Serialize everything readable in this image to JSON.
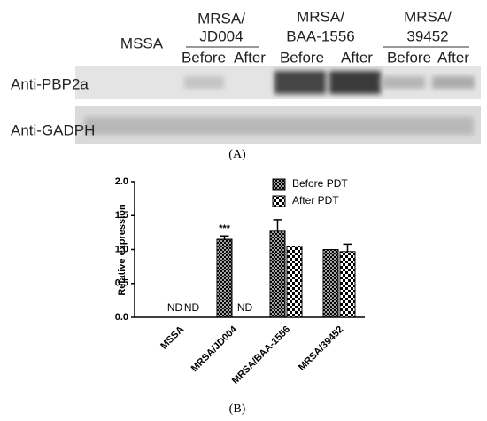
{
  "blot": {
    "groups": [
      {
        "label": "MSSA"
      },
      {
        "label": "MRSA/",
        "sublabel": "JD004",
        "lanes": [
          "Before",
          "After"
        ]
      },
      {
        "label": "MRSA/",
        "sublabel": "BAA-1556",
        "lanes": [
          "Before",
          "After"
        ]
      },
      {
        "label": "MRSA/",
        "sublabel": "39452",
        "lanes": [
          "Before",
          "After"
        ]
      }
    ],
    "rows": [
      "Anti-PBP2a",
      "Anti-GADPH"
    ],
    "panel_label": "(A)"
  },
  "chart_data": {
    "type": "bar",
    "panel_label": "(B)",
    "y_label": "Relative expression",
    "categories": [
      "MSSA",
      "MRSA/JD004",
      "MRSA/BAA-1556",
      "MRSA/39452"
    ],
    "series": [
      {
        "name": "Before PDT",
        "color": "#000000",
        "values": [
          null,
          1.15,
          1.27,
          1.0
        ],
        "errors": [
          null,
          0.05,
          0.17,
          null
        ],
        "value_labels": [
          "ND",
          null,
          null,
          null
        ],
        "annotations": [
          null,
          "***",
          null,
          null
        ]
      },
      {
        "name": "After PDT",
        "color": "#000000",
        "values": [
          null,
          null,
          1.05,
          0.97
        ],
        "errors": [
          null,
          null,
          null,
          0.11
        ],
        "value_labels": [
          "ND",
          "ND",
          null,
          null
        ]
      }
    ],
    "ylim": [
      0,
      2
    ],
    "yticks": [
      {
        "value": 0,
        "label": "0.0"
      },
      {
        "value": 0.5,
        "label": "0.5"
      },
      {
        "value": 1,
        "label": "1.0"
      },
      {
        "value": 1.5,
        "label": "1.5"
      },
      {
        "value": 2,
        "label": "2.0"
      }
    ],
    "legend": "top-right"
  }
}
